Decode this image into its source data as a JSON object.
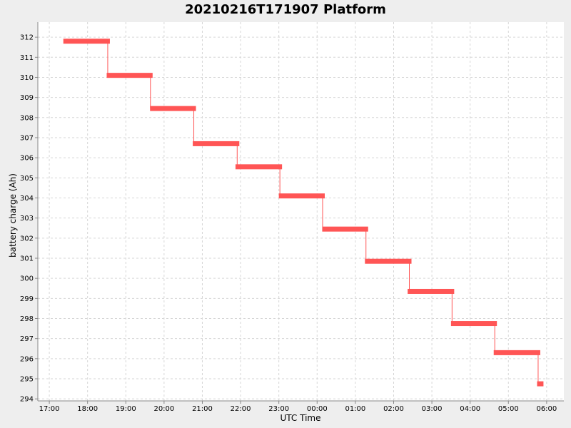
{
  "chart_data": {
    "type": "line",
    "title": "20210216T171907 Platform",
    "xlabel": "UTC Time",
    "ylabel": "battery charge (Ah)",
    "x_ticks": [
      "17:00",
      "18:00",
      "19:00",
      "20:00",
      "21:00",
      "22:00",
      "23:00",
      "00:00",
      "01:00",
      "02:00",
      "03:00",
      "04:00",
      "05:00",
      "06:00"
    ],
    "y_ticks": [
      294,
      295,
      296,
      297,
      298,
      299,
      300,
      301,
      302,
      303,
      304,
      305,
      306,
      307,
      308,
      309,
      310,
      311,
      312
    ],
    "ylim": [
      293.9,
      312.75
    ],
    "xlim_hours": [
      16.7,
      30.45
    ],
    "grid": true,
    "series": [
      {
        "color": "#ff5555",
        "segments": [
          {
            "start": "17:22",
            "end": "18:35",
            "value": 311.8
          },
          {
            "start": "18:30",
            "end": "19:42",
            "value": 310.1
          },
          {
            "start": "19:38",
            "end": "20:50",
            "value": 308.45
          },
          {
            "start": "20:45",
            "end": "21:58",
            "value": 306.7
          },
          {
            "start": "21:52",
            "end": "23:05",
            "value": 305.55
          },
          {
            "start": "23:00",
            "end": "00:12",
            "value": 304.1
          },
          {
            "start": "00:08",
            "end": "01:20",
            "value": 302.45
          },
          {
            "start": "01:15",
            "end": "02:28",
            "value": 300.85
          },
          {
            "start": "02:22",
            "end": "03:35",
            "value": 299.35
          },
          {
            "start": "03:30",
            "end": "04:42",
            "value": 297.75
          },
          {
            "start": "04:37",
            "end": "05:50",
            "value": 296.3
          },
          {
            "start": "05:45",
            "end": "05:55",
            "value": 294.75
          }
        ]
      }
    ]
  }
}
